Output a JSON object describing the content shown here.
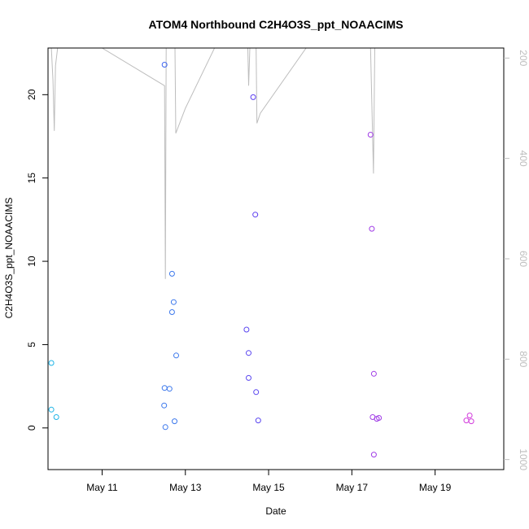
{
  "chart_data": {
    "type": "scatter",
    "title": "ATOM4 Northbound C2H4O3S_ppt_NOAACIMS",
    "xlabel": "Date",
    "ylabel": "C2H4O3S_ppt_NOAACIMS",
    "xlim": [
      9.7,
      20.65
    ],
    "ylim": [
      -2.5,
      22.8
    ],
    "x_ticks": [
      {
        "value": 11,
        "label": "May 11"
      },
      {
        "value": 13,
        "label": "May 13"
      },
      {
        "value": 15,
        "label": "May 15"
      },
      {
        "value": 17,
        "label": "May 17"
      },
      {
        "value": 19,
        "label": "May 19"
      }
    ],
    "y_ticks": [
      {
        "value": 0,
        "label": "0"
      },
      {
        "value": 5,
        "label": "5"
      },
      {
        "value": 10,
        "label": "10"
      },
      {
        "value": 15,
        "label": "15"
      },
      {
        "value": 20,
        "label": "20"
      }
    ],
    "y2_range": [
      1020,
      180
    ],
    "y2_ticks": [
      {
        "value": 200,
        "label": "200"
      },
      {
        "value": 400,
        "label": "400"
      },
      {
        "value": 600,
        "label": "600"
      },
      {
        "value": 800,
        "label": "800"
      },
      {
        "value": 1000,
        "label": "1000"
      }
    ],
    "pressure_trace": [
      [
        9.78,
        170
      ],
      [
        9.82,
        245
      ],
      [
        9.85,
        345
      ],
      [
        9.88,
        215
      ],
      [
        9.93,
        170
      ],
      [
        11.0,
        170
      ],
      [
        12.5,
        255
      ],
      [
        12.52,
        640
      ],
      [
        12.54,
        165
      ],
      [
        12.6,
        165
      ],
      [
        12.75,
        165
      ],
      [
        12.77,
        350
      ],
      [
        13.0,
        300
      ],
      [
        13.7,
        170
      ],
      [
        14.5,
        170
      ],
      [
        14.52,
        255
      ],
      [
        14.55,
        165
      ],
      [
        14.7,
        170
      ],
      [
        14.72,
        330
      ],
      [
        14.8,
        310
      ],
      [
        15.9,
        170
      ],
      [
        17.45,
        170
      ],
      [
        17.52,
        430
      ],
      [
        17.55,
        170
      ]
    ],
    "series": [
      {
        "name": "observations",
        "points": [
          {
            "x": 9.78,
            "y": 3.9,
            "color": "#1eb4e6"
          },
          {
            "x": 9.78,
            "y": 1.1,
            "color": "#1eb4e6"
          },
          {
            "x": 9.9,
            "y": 0.65,
            "color": "#1eb4e6"
          },
          {
            "x": 12.5,
            "y": 21.8,
            "color": "#3c64f0"
          },
          {
            "x": 12.68,
            "y": 9.25,
            "color": "#3c78ec"
          },
          {
            "x": 12.72,
            "y": 7.55,
            "color": "#3c78ec"
          },
          {
            "x": 12.68,
            "y": 6.95,
            "color": "#3c78ec"
          },
          {
            "x": 12.78,
            "y": 4.35,
            "color": "#3c78ec"
          },
          {
            "x": 12.5,
            "y": 2.4,
            "color": "#3c78ec"
          },
          {
            "x": 12.62,
            "y": 2.35,
            "color": "#3c78ec"
          },
          {
            "x": 12.49,
            "y": 1.35,
            "color": "#3c78ec"
          },
          {
            "x": 12.74,
            "y": 0.4,
            "color": "#3c78ec"
          },
          {
            "x": 12.52,
            "y": 0.05,
            "color": "#3c78ec"
          },
          {
            "x": 14.63,
            "y": 19.85,
            "color": "#5a3cf0"
          },
          {
            "x": 14.68,
            "y": 12.8,
            "color": "#5a3cf0"
          },
          {
            "x": 14.47,
            "y": 5.9,
            "color": "#5a46f0"
          },
          {
            "x": 14.52,
            "y": 4.5,
            "color": "#5a46f0"
          },
          {
            "x": 14.52,
            "y": 3.0,
            "color": "#5a46f0"
          },
          {
            "x": 14.7,
            "y": 2.15,
            "color": "#5a46f0"
          },
          {
            "x": 14.75,
            "y": 0.45,
            "color": "#5a46f0"
          },
          {
            "x": 17.45,
            "y": 17.6,
            "color": "#a03ce6"
          },
          {
            "x": 17.48,
            "y": 11.95,
            "color": "#a03ce6"
          },
          {
            "x": 17.53,
            "y": 3.25,
            "color": "#a03ce6"
          },
          {
            "x": 17.5,
            "y": 0.65,
            "color": "#a03ce6"
          },
          {
            "x": 17.6,
            "y": 0.55,
            "color": "#a03ce6"
          },
          {
            "x": 17.65,
            "y": 0.6,
            "color": "#a03ce6"
          },
          {
            "x": 17.53,
            "y": -1.6,
            "color": "#a03ce6"
          },
          {
            "x": 19.75,
            "y": 0.45,
            "color": "#d23cdc"
          },
          {
            "x": 19.83,
            "y": 0.75,
            "color": "#d23cdc"
          },
          {
            "x": 19.87,
            "y": 0.4,
            "color": "#d23cdc"
          }
        ]
      }
    ]
  }
}
